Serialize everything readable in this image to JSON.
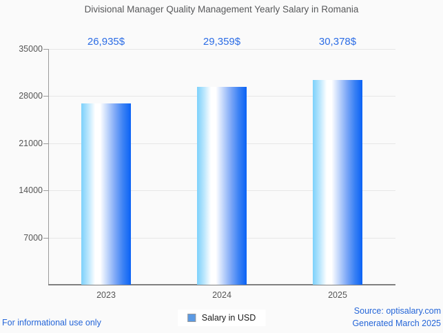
{
  "chart_data": {
    "type": "bar",
    "title": "Divisional Manager Quality Management Yearly Salary in Romania",
    "categories": [
      "2023",
      "2024",
      "2025"
    ],
    "values": [
      26935,
      29359,
      30378
    ],
    "value_labels": [
      "26,935$",
      "29,359$",
      "30,378$"
    ],
    "series_name": "Salary in USD",
    "xlabel": "",
    "ylabel": "",
    "ylim": [
      0,
      35000
    ],
    "yticks": [
      7000,
      14000,
      21000,
      28000,
      35000
    ],
    "grid": true,
    "legend_position": "bottom"
  },
  "legend": {
    "marker_icon": "blue-square-icon",
    "label": "Salary in USD"
  },
  "footer": {
    "disclaimer": "For informational use only",
    "source": "Source: optisalary.com",
    "generated": "Generated March 2025"
  },
  "colors": {
    "background": "#fafafa",
    "title_gray": "#57585a",
    "axis_gray": "#9a9a9a",
    "gridline_gray": "#e6e6e6",
    "tick_label_gray": "#555555",
    "value_label_blue": "#2b6ce5",
    "footer_link_blue": "#2465d8",
    "bar_gradient_left": "#7cd1fb",
    "bar_gradient_middle": "#ffffff",
    "bar_gradient_right": "#0a62f5",
    "legend_marker_fill": "#5b9ae4",
    "legend_marker_border": "#999999"
  }
}
